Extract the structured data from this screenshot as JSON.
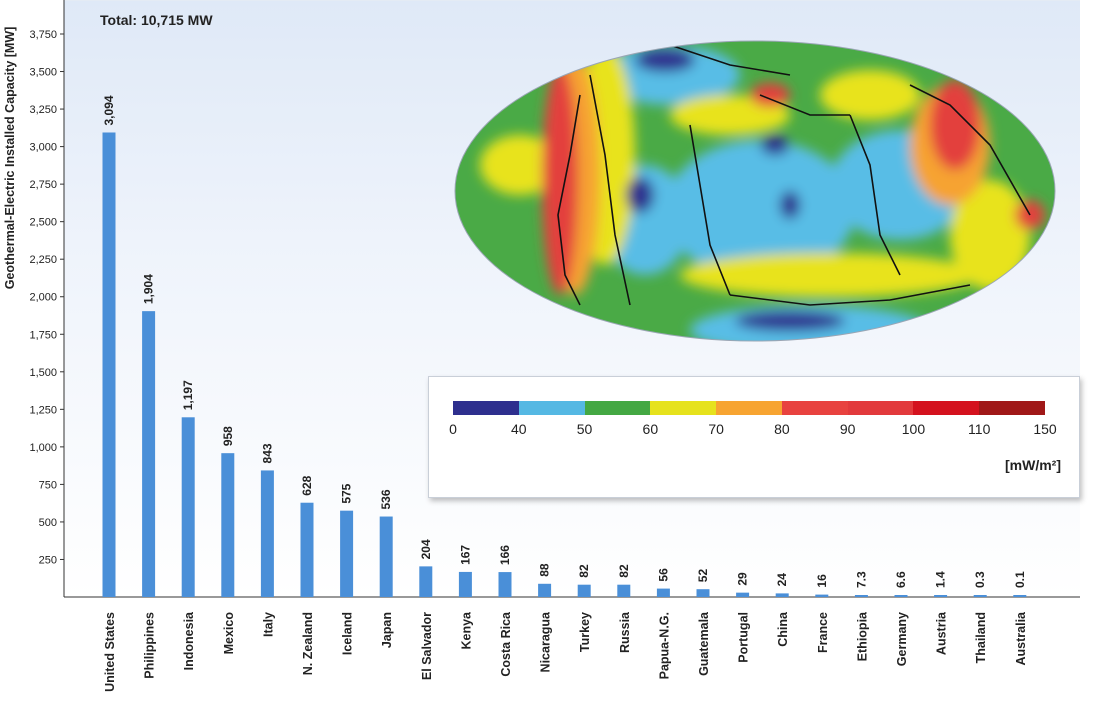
{
  "total_label": "Total: 10,715 MW",
  "chart_data": {
    "type": "bar",
    "title": "",
    "xlabel": "",
    "ylabel": "Geothermal-Electric Installed Capacity [MW]",
    "ylim": [
      0,
      3750
    ],
    "yticks": [
      250,
      500,
      750,
      1000,
      1250,
      1500,
      1750,
      2000,
      2250,
      2500,
      2750,
      3000,
      3250,
      3500,
      3750
    ],
    "ytick_labels": [
      "250",
      "500",
      "750",
      "1,000",
      "1,250",
      "1,500",
      "1,750",
      "2,000",
      "2,250",
      "2,500",
      "2,750",
      "3,000",
      "3,250",
      "3,500",
      "3,750"
    ],
    "categories": [
      "United States",
      "Philippines",
      "Indonesia",
      "Mexico",
      "Italy",
      "N. Zealand",
      "Iceland",
      "Japan",
      "El Salvador",
      "Kenya",
      "Costa Rica",
      "Nicaragua",
      "Turkey",
      "Russia",
      "Papua-N.G.",
      "Guatemala",
      "Portugal",
      "China",
      "France",
      "Ethiopia",
      "Germany",
      "Austria",
      "Thailand",
      "Australia"
    ],
    "values": [
      3094,
      1904,
      1197,
      958,
      843,
      628,
      575,
      536,
      204,
      167,
      166,
      88,
      82,
      82,
      56,
      52,
      29,
      24,
      16,
      7.3,
      6.6,
      1.4,
      0.3,
      0.1
    ],
    "value_labels": [
      "3,094",
      "1,904",
      "1,197",
      "958",
      "843",
      "628",
      "575",
      "536",
      "204",
      "167",
      "166",
      "88",
      "82",
      "82",
      "56",
      "52",
      "29",
      "24",
      "16",
      "7.3",
      "6.6",
      "1.4",
      "0.3",
      "0.1"
    ],
    "bar_color": "#4a8fd8",
    "grid": false
  },
  "heat_flow_legend": {
    "colors": [
      "#2e2f8e",
      "#55b8e3",
      "#44a843",
      "#e6e21d",
      "#f7a431",
      "#e8423f",
      "#e23a3c",
      "#d4121e",
      "#a01818"
    ],
    "ticks": [
      "0",
      "40",
      "50",
      "60",
      "70",
      "80",
      "90",
      "100",
      "110",
      "150"
    ],
    "unit": "[mW/m²]"
  }
}
